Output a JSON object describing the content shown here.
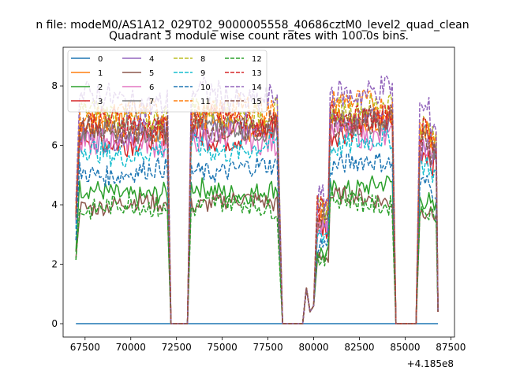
{
  "chart_data": {
    "type": "line",
    "suptitle": "n file: modeM0/AS1A12_029T02_9000005558_40686cztM0_level2_quad_clean",
    "title": "Quadrant 3 module wise count rates with 100.0s bins.",
    "xlabel": "",
    "ylabel": "",
    "x_offset_label": "+4.185e8",
    "xlim": [
      66300,
      87700
    ],
    "ylim": [
      -0.45,
      9.3
    ],
    "xticks": [
      67500,
      70000,
      72500,
      75000,
      77500,
      80000,
      82500,
      85000,
      87500
    ],
    "yticks": [
      0,
      2,
      4,
      6,
      8
    ],
    "legend": {
      "location": "top-left",
      "ncol": 4
    },
    "series": [
      {
        "name": "0",
        "color": "#1f77b4",
        "linestyle": "solid",
        "points": [
          [
            67000,
            0
          ],
          [
            86800,
            0
          ]
        ]
      },
      {
        "name": "1",
        "color": "#ff7f0e",
        "linestyle": "solid",
        "level": 6.6,
        "amp": 0.45
      },
      {
        "name": "2",
        "color": "#2ca02c",
        "linestyle": "solid",
        "level": 4.4,
        "amp": 0.35
      },
      {
        "name": "3",
        "color": "#d62728",
        "linestyle": "solid",
        "level": 6.3,
        "amp": 0.5
      },
      {
        "name": "4",
        "color": "#9467bd",
        "linestyle": "solid",
        "level": 6.4,
        "amp": 0.45
      },
      {
        "name": "5",
        "color": "#8c564b",
        "linestyle": "solid",
        "level": 4.0,
        "amp": 0.3
      },
      {
        "name": "6",
        "color": "#e377c2",
        "linestyle": "solid",
        "level": 6.1,
        "amp": 0.45
      },
      {
        "name": "7",
        "color": "#7f7f7f",
        "linestyle": "solid",
        "level": 6.5,
        "amp": 0.4
      },
      {
        "name": "8",
        "color": "#bcbd22",
        "linestyle": "dashed",
        "level": 7.0,
        "amp": 0.45
      },
      {
        "name": "9",
        "color": "#17becf",
        "linestyle": "dashed",
        "level": 5.8,
        "amp": 0.4
      },
      {
        "name": "10",
        "color": "#1f77b4",
        "linestyle": "dashed",
        "level": 5.1,
        "amp": 0.35
      },
      {
        "name": "11",
        "color": "#ff7f0e",
        "linestyle": "dashed",
        "level": 7.0,
        "amp": 0.45
      },
      {
        "name": "12",
        "color": "#2ca02c",
        "linestyle": "dashed",
        "level": 3.9,
        "amp": 0.35
      },
      {
        "name": "13",
        "color": "#d62728",
        "linestyle": "dashed",
        "level": 6.7,
        "amp": 0.45
      },
      {
        "name": "14",
        "color": "#9467bd",
        "linestyle": "dashed",
        "level": 7.5,
        "amp": 0.5
      },
      {
        "name": "15",
        "color": "#8c564b",
        "linestyle": "dashed",
        "level": 6.5,
        "amp": 0.45
      }
    ],
    "active_intervals": [
      [
        67000,
        72000
      ],
      [
        73200,
        78100
      ],
      [
        79500,
        80300
      ],
      [
        80300,
        84300
      ],
      [
        85700,
        86800
      ]
    ],
    "gaps_at_zero": [
      [
        72200,
        73100
      ],
      [
        78300,
        79400
      ],
      [
        84500,
        85600
      ]
    ]
  }
}
